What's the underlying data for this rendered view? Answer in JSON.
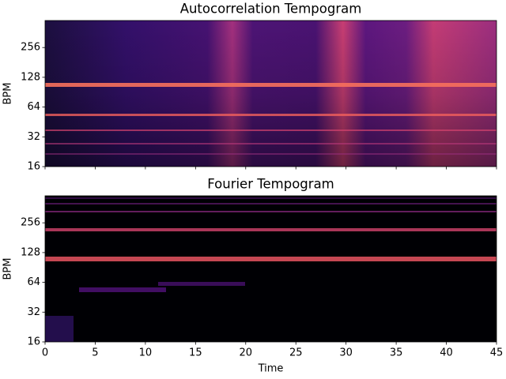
{
  "chart_data": [
    {
      "type": "heatmap",
      "title": "Autocorrelation Tempogram",
      "ylabel": "BPM",
      "yscale": "log2",
      "xlim": [
        0,
        45
      ],
      "xticks": [
        0,
        5,
        10,
        15,
        20,
        25,
        30,
        35,
        40,
        45
      ],
      "xticklabels": false,
      "ylim": [
        16,
        480
      ],
      "yticks": [
        16,
        32,
        64,
        128,
        256
      ],
      "colormap": "magma"
    },
    {
      "type": "heatmap",
      "title": "Fourier Tempogram",
      "ylabel": "BPM",
      "xlabel": "Time",
      "yscale": "log2",
      "xlim": [
        0,
        45
      ],
      "xticks": [
        0,
        5,
        10,
        15,
        20,
        25,
        30,
        35,
        40,
        45
      ],
      "xticklabels": true,
      "ylim": [
        16,
        480
      ],
      "yticks": [
        16,
        32,
        64,
        128,
        256
      ],
      "colormap": "magma"
    }
  ]
}
